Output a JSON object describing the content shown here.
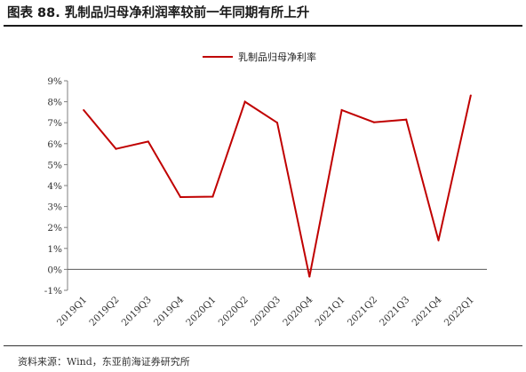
{
  "figure": {
    "title": "图表 88. 乳制品归母净利润率较前一年同期有所上升",
    "source": "资料来源：Wind，东亚前海证券研究所"
  },
  "chart_data": {
    "type": "line",
    "categories": [
      "2019Q1",
      "2019Q2",
      "2019Q3",
      "2019Q4",
      "2020Q1",
      "2020Q2",
      "2020Q3",
      "2020Q4",
      "2021Q1",
      "2021Q2",
      "2021Q3",
      "2021Q4",
      "2022Q1"
    ],
    "series": [
      {
        "name": "乳制品归母净利率",
        "color": "#c00000",
        "values": [
          7.6,
          5.75,
          6.1,
          3.45,
          3.47,
          8.0,
          7.0,
          -0.35,
          7.6,
          7.02,
          7.15,
          1.38,
          8.3
        ]
      }
    ],
    "ylim": [
      -1,
      9
    ],
    "yticks": [
      -1,
      0,
      1,
      2,
      3,
      4,
      5,
      6,
      7,
      8,
      9
    ],
    "ytick_labels": [
      "-1%",
      "0%",
      "1%",
      "2%",
      "3%",
      "4%",
      "5%",
      "6%",
      "7%",
      "8%",
      "9%"
    ],
    "legend_position": "top-center",
    "grid": false
  }
}
